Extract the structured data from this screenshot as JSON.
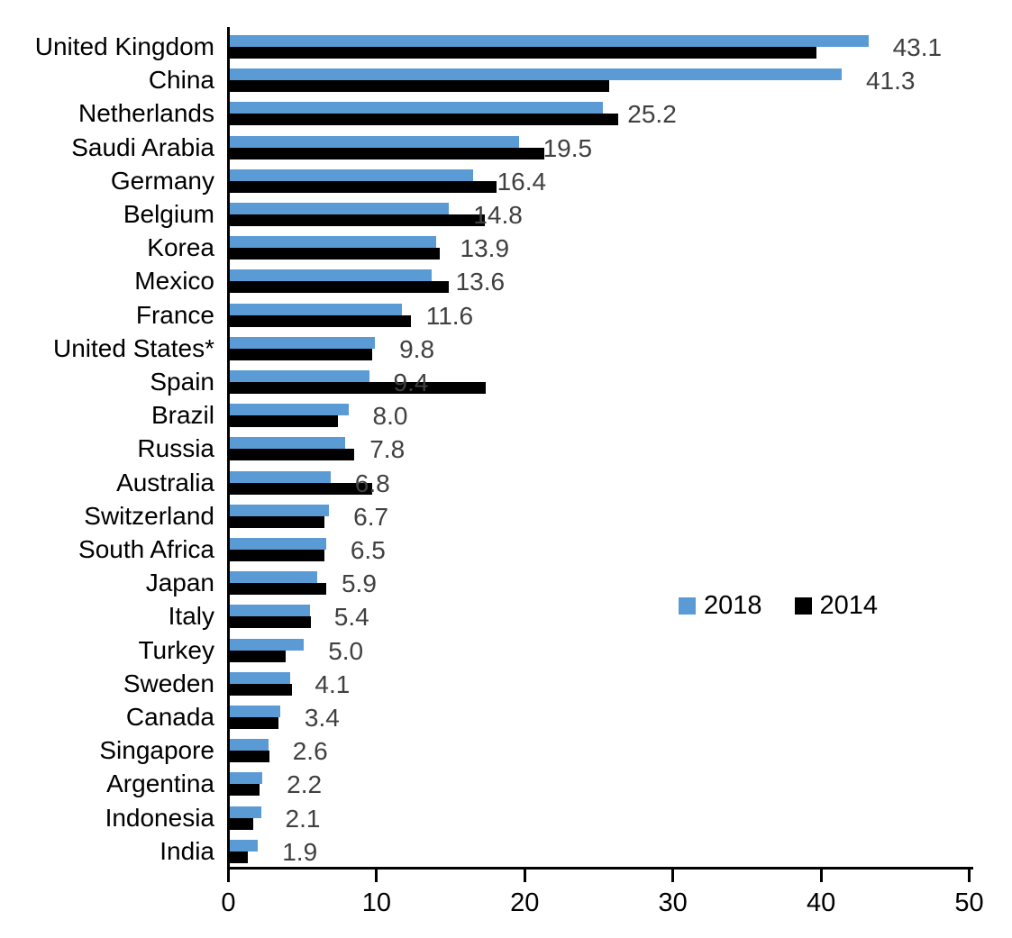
{
  "chart_data": {
    "type": "bar",
    "orientation": "horizontal",
    "title": "",
    "xlabel": "",
    "ylabel": "",
    "categories": [
      "United Kingdom",
      "China",
      "Netherlands",
      "Saudi Arabia",
      "Germany",
      "Belgium",
      "Korea",
      "Mexico",
      "France",
      "United States*",
      "Spain",
      "Brazil",
      "Russia",
      "Australia",
      "Switzerland",
      "South Africa",
      "Japan",
      "Italy",
      "Turkey",
      "Sweden",
      "Canada",
      "Singapore",
      "Argentina",
      "Indonesia",
      "India"
    ],
    "series": [
      {
        "name": "2018",
        "color": "#5B9BD5",
        "values": [
          43.1,
          41.3,
          25.2,
          19.5,
          16.4,
          14.8,
          13.9,
          13.6,
          11.6,
          9.8,
          9.4,
          8.0,
          7.8,
          6.8,
          6.7,
          6.5,
          5.9,
          5.4,
          5.0,
          4.1,
          3.4,
          2.6,
          2.2,
          2.1,
          1.9
        ]
      },
      {
        "name": "2014",
        "color": "#000000",
        "values": [
          39.6,
          25.6,
          26.2,
          21.2,
          18.0,
          17.2,
          14.2,
          14.8,
          12.2,
          9.6,
          17.3,
          7.3,
          8.4,
          9.6,
          6.4,
          6.4,
          6.5,
          5.5,
          3.8,
          4.2,
          3.3,
          2.7,
          2.0,
          1.6,
          1.2
        ]
      }
    ],
    "data_labels": {
      "series": "2018",
      "color": "#404040",
      "values": [
        "43.1",
        "41.3",
        "25.2",
        "19.5",
        "16.4",
        "14.8",
        "13.9",
        "13.6",
        "11.6",
        "9.8",
        "9.4",
        "8.0",
        "7.8",
        "6.8",
        "6.7",
        "6.5",
        "5.9",
        "5.4",
        "5.0",
        "4.1",
        "3.4",
        "2.6",
        "2.2",
        "2.1",
        "1.9"
      ]
    },
    "x_axis": {
      "min": 0,
      "max": 50,
      "ticks": [
        "0",
        "10",
        "20",
        "30",
        "40",
        "50"
      ]
    },
    "legend": {
      "position": "middle-right",
      "entries": [
        "2018",
        "2014"
      ]
    },
    "grid": "off",
    "axis_color": "#000000",
    "background": "#ffffff"
  }
}
